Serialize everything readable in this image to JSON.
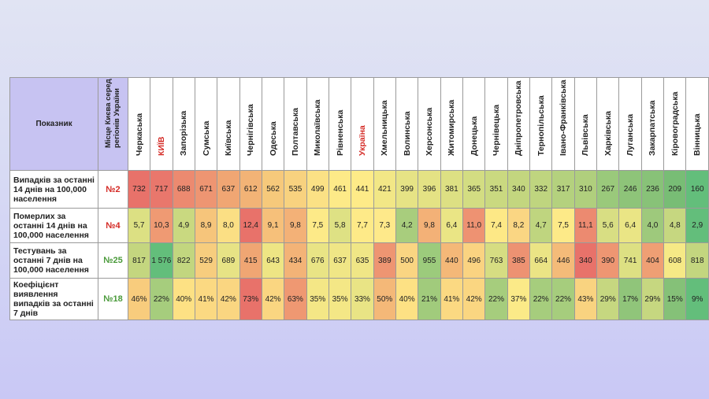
{
  "header": {
    "indicator_label": "Показник",
    "place_label": "Місце Києва серед регіонів України"
  },
  "regions": [
    {
      "name": "Черкаська",
      "red": false
    },
    {
      "name": "КИЇВ",
      "red": true
    },
    {
      "name": "Запорізька",
      "red": false
    },
    {
      "name": "Сумська",
      "red": false
    },
    {
      "name": "Київська",
      "red": false
    },
    {
      "name": "Чернігівська",
      "red": false
    },
    {
      "name": "Одеська",
      "red": false
    },
    {
      "name": "Полтавська",
      "red": false
    },
    {
      "name": "Миколаївська",
      "red": false
    },
    {
      "name": "Рівненська",
      "red": false
    },
    {
      "name": "Україна",
      "red": true
    },
    {
      "name": "Хмельницька",
      "red": false
    },
    {
      "name": "Волинська",
      "red": false
    },
    {
      "name": "Херсонська",
      "red": false
    },
    {
      "name": "Житомирська",
      "red": false
    },
    {
      "name": "Донецька",
      "red": false
    },
    {
      "name": "Чернівецька",
      "red": false
    },
    {
      "name": "Дніпропетровська",
      "red": false
    },
    {
      "name": "Тернопільська",
      "red": false
    },
    {
      "name": "Івано-Франківська",
      "red": false
    },
    {
      "name": "Львівська",
      "red": false
    },
    {
      "name": "Харківська",
      "red": false
    },
    {
      "name": "Луганська",
      "red": false
    },
    {
      "name": "Закарпатська",
      "red": false
    },
    {
      "name": "Кіровоградська",
      "red": false
    },
    {
      "name": "Вінницька",
      "red": false
    }
  ],
  "rows": [
    {
      "label": "Випадків за останні 14 днів на 100,000 населення",
      "rank": "№2",
      "rank_color": "#d42a25",
      "values": [
        "732",
        "717",
        "688",
        "671",
        "637",
        "612",
        "562",
        "535",
        "499",
        "461",
        "441",
        "421",
        "399",
        "396",
        "381",
        "365",
        "351",
        "340",
        "332",
        "317",
        "310",
        "267",
        "246",
        "236",
        "209",
        "160"
      ],
      "colors": [
        "#e8726a",
        "#e9776c",
        "#ec8a70",
        "#ee9572",
        "#f0a673",
        "#f2b376",
        "#f6c97b",
        "#f8d27f",
        "#fbe185",
        "#fdea88",
        "#feeb88",
        "#f2e786",
        "#e6e385",
        "#e4e284",
        "#dde083",
        "#d3dd82",
        "#cad980",
        "#c3d67f",
        "#bfd57f",
        "#b4d17e",
        "#b0cf7d",
        "#9ac97b",
        "#8ec479",
        "#88c278",
        "#78bd75",
        "#63be7b"
      ]
    },
    {
      "label": "Померлих за останні 14 днів на 100,000 населення",
      "rank": "№4",
      "rank_color": "#d42a25",
      "values": [
        "5,7",
        "10,3",
        "4,9",
        "8,9",
        "8,0",
        "12,4",
        "9,1",
        "9,8",
        "7,5",
        "5,8",
        "7,7",
        "7,3",
        "4,2",
        "9,8",
        "6,4",
        "11,0",
        "7,4",
        "8,2",
        "4,7",
        "7,5",
        "11,1",
        "5,6",
        "6,4",
        "4,0",
        "4,8",
        "2,9"
      ],
      "colors": [
        "#dce083",
        "#ef9a73",
        "#c9d980",
        "#f6c57b",
        "#fbdf84",
        "#e8726a",
        "#f6c07a",
        "#f3b177",
        "#fdea88",
        "#dee184",
        "#feea88",
        "#fee98a",
        "#a8cd7d",
        "#f3b177",
        "#eae585",
        "#ee9272",
        "#fde886",
        "#fad683",
        "#bfd57f",
        "#fdea88",
        "#ec8a70",
        "#d8de83",
        "#eae585",
        "#9ec97c",
        "#c6d780",
        "#63be7b"
      ]
    },
    {
      "label": "Тестувань за останні 7 днів на 100,000 населення",
      "rank": "№25",
      "rank_color": "#4a9a3a",
      "values": [
        "817",
        "1 576",
        "822",
        "529",
        "689",
        "415",
        "643",
        "434",
        "676",
        "637",
        "635",
        "389",
        "500",
        "955",
        "440",
        "496",
        "763",
        "385",
        "664",
        "446",
        "340",
        "390",
        "741",
        "404",
        "608",
        "818"
      ],
      "colors": [
        "#c4d67f",
        "#63be7b",
        "#c2d67f",
        "#f7cd7e",
        "#e7e385",
        "#f0a673",
        "#eee584",
        "#f3b377",
        "#e9e485",
        "#f0e686",
        "#f0e686",
        "#ee9572",
        "#fad582",
        "#9ccb7c",
        "#f4b878",
        "#fad381",
        "#d6dd82",
        "#ed9272",
        "#ebe485",
        "#f4bb79",
        "#e8726a",
        "#ee9672",
        "#dde083",
        "#ef9f74",
        "#f6e986",
        "#c3d67f"
      ]
    },
    {
      "label": "Коефіцієнт виявлення випадків за останні 7 днів",
      "rank": "№18",
      "rank_color": "#4a9a3a",
      "values": [
        "46%",
        "22%",
        "40%",
        "41%",
        "42%",
        "73%",
        "42%",
        "63%",
        "35%",
        "35%",
        "33%",
        "50%",
        "40%",
        "21%",
        "41%",
        "42%",
        "22%",
        "37%",
        "22%",
        "22%",
        "43%",
        "29%",
        "17%",
        "29%",
        "15%",
        "9%"
      ],
      "colors": [
        "#f8cc7d",
        "#a6cd7d",
        "#fde184",
        "#fbd982",
        "#fad681",
        "#e8726a",
        "#fad681",
        "#ef9872",
        "#f4e786",
        "#f4e786",
        "#e9e485",
        "#f4b878",
        "#fde184",
        "#a1cb7c",
        "#fbd982",
        "#fad681",
        "#a6cd7d",
        "#fbea88",
        "#a6cd7d",
        "#a6cd7d",
        "#f9d380",
        "#c6d780",
        "#90c57a",
        "#c6d780",
        "#85c178",
        "#63be7b"
      ]
    }
  ]
}
